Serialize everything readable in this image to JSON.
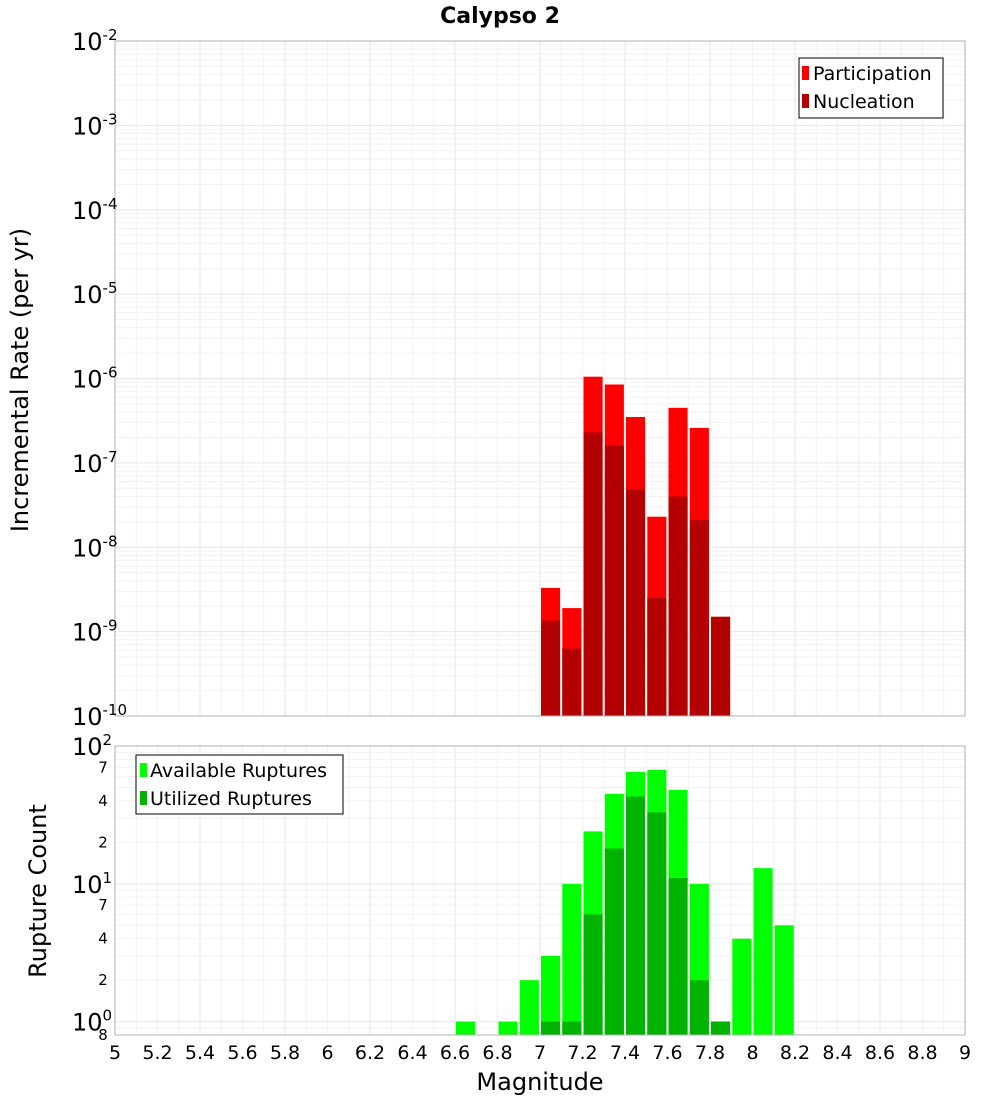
{
  "chart_data": [
    {
      "type": "bar",
      "title": "Calypso 2",
      "xlabel": "",
      "ylabel": "Incremental Rate (per yr)",
      "xlim": [
        5,
        9
      ],
      "ylim": [
        1e-10,
        0.01
      ],
      "yscale": "log",
      "y_ticks": [
        {
          "base": "10",
          "exp": "-2"
        },
        {
          "base": "10",
          "exp": "-3"
        },
        {
          "base": "10",
          "exp": "-4"
        },
        {
          "base": "10",
          "exp": "-5"
        },
        {
          "base": "10",
          "exp": "-6"
        },
        {
          "base": "10",
          "exp": "-7"
        },
        {
          "base": "10",
          "exp": "-8"
        },
        {
          "base": "10",
          "exp": "-9"
        },
        {
          "base": "10",
          "exp": "-10"
        }
      ],
      "grid": true,
      "legend_position": "top-right",
      "series": [
        {
          "name": "Participation",
          "color": "#ff0000",
          "x": [
            7.0,
            7.1,
            7.2,
            7.3,
            7.4,
            7.5,
            7.6,
            7.7,
            7.8
          ],
          "values": [
            3.3e-09,
            1.9e-09,
            1.05e-06,
            8.5e-07,
            3.5e-07,
            2.3e-08,
            4.5e-07,
            2.6e-07,
            1.5e-09
          ]
        },
        {
          "name": "Nucleation",
          "color": "#b30000",
          "x": [
            7.0,
            7.1,
            7.2,
            7.3,
            7.4,
            7.5,
            7.6,
            7.7,
            7.8
          ],
          "values": [
            1.35e-09,
            6.3e-10,
            2.3e-07,
            1.6e-07,
            4.8e-08,
            2.5e-09,
            4e-08,
            2.1e-08,
            1.5e-09
          ]
        }
      ]
    },
    {
      "type": "bar",
      "title": "",
      "xlabel": "Magnitude",
      "ylabel": "Rupture Count",
      "xlim": [
        5,
        9
      ],
      "ylim": [
        0.8,
        100
      ],
      "yscale": "log",
      "y_ticks": [
        {
          "base": "10",
          "exp": "2"
        },
        {
          "base": "10",
          "exp": "1"
        },
        {
          "base": "10",
          "exp": "0"
        }
      ],
      "y_minor_labels": [
        "7",
        "4",
        "2",
        "7",
        "4",
        "2",
        "8"
      ],
      "x_ticks": [
        "5",
        "5.2",
        "5.4",
        "5.6",
        "5.8",
        "6",
        "6.2",
        "6.4",
        "6.6",
        "6.8",
        "7",
        "7.2",
        "7.4",
        "7.6",
        "7.8",
        "8",
        "8.2",
        "8.4",
        "8.6",
        "8.8",
        "9"
      ],
      "grid": true,
      "legend_position": "top-left",
      "series": [
        {
          "name": "Available Ruptures",
          "color": "#00ff00",
          "x": [
            6.6,
            6.7,
            6.8,
            6.9,
            7.0,
            7.1,
            7.2,
            7.3,
            7.4,
            7.5,
            7.6,
            7.7,
            7.8,
            7.9,
            8.0,
            8.1
          ],
          "values": [
            1,
            0,
            1,
            2,
            3,
            10,
            24,
            45,
            65,
            67,
            48,
            10,
            1,
            4,
            13,
            5
          ]
        },
        {
          "name": "Utilized Ruptures",
          "color": "#00b300",
          "x": [
            6.6,
            6.7,
            6.8,
            6.9,
            7.0,
            7.1,
            7.2,
            7.3,
            7.4,
            7.5,
            7.6,
            7.7,
            7.8,
            7.9,
            8.0,
            8.1
          ],
          "values": [
            0,
            0,
            0,
            0,
            1,
            1,
            6,
            18,
            43,
            33,
            11,
            2,
            1,
            0,
            0,
            0
          ]
        }
      ]
    }
  ]
}
